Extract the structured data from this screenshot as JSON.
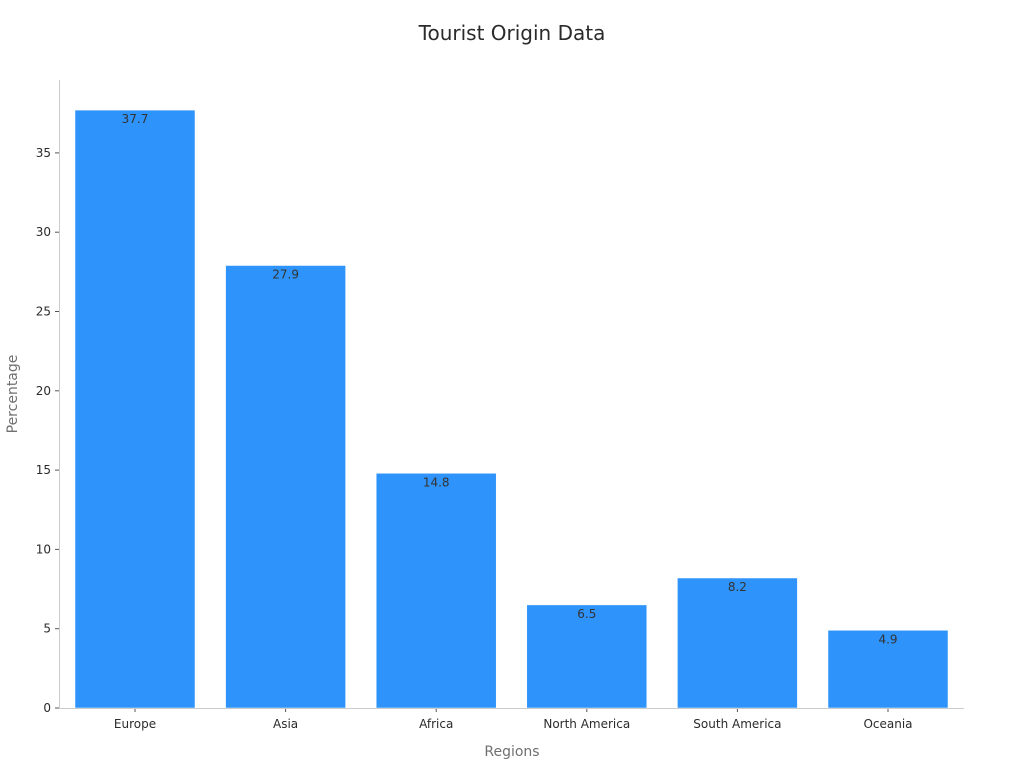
{
  "chart_data": {
    "type": "bar",
    "title": "Tourist Origin Data",
    "xlabel": "Regions",
    "ylabel": "Percentage",
    "categories": [
      "Europe",
      "Asia",
      "Africa",
      "North America",
      "South America",
      "Oceania"
    ],
    "values": [
      37.7,
      27.9,
      14.8,
      6.5,
      8.2,
      4.9
    ],
    "data_labels": [
      "37.7",
      "27.9",
      "14.8",
      "6.5",
      "8.2",
      "4.9"
    ],
    "ylim": [
      0,
      39.6
    ],
    "yticks": [
      0,
      5,
      10,
      15,
      20,
      25,
      30,
      35
    ],
    "grid": false,
    "legend": "none",
    "bar_color": "#2e93fa"
  }
}
